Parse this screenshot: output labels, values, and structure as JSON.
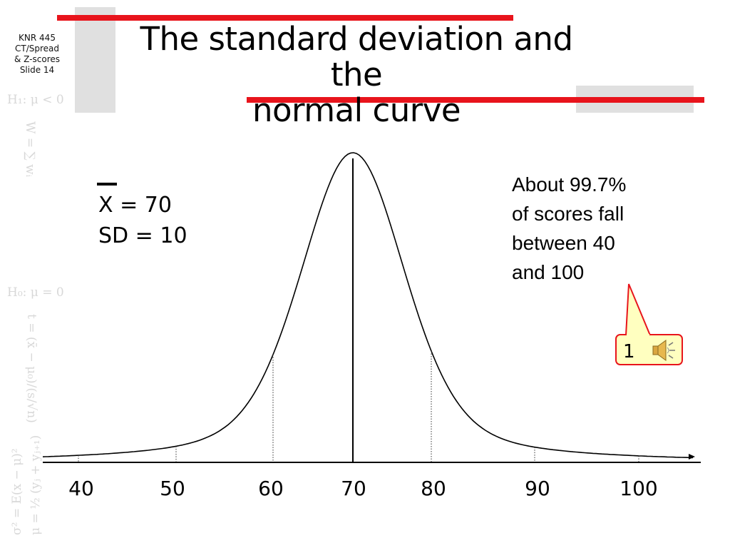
{
  "slide": {
    "side_label": [
      "KNR 445",
      "CT/Spread",
      "& Z-scores",
      "Slide 14"
    ],
    "title_lines": [
      "The standard deviation and the",
      "normal curve"
    ],
    "side_formulas": [
      "H₁: μ < 0",
      "W = ∑ wᵢ",
      "H₀: μ = 0",
      "t = (x̄ − μ₀)/(s/√n)",
      "σ² = E(x − μ)²",
      "μ = ½ (yⱼ + yⱼ₊₁)"
    ],
    "accent_color": "#e8141c",
    "band_color": "#e0e0e0"
  },
  "stats": {
    "mean_symbol": "X",
    "mean_line": " = 70",
    "sd_line": "SD = 10"
  },
  "note": {
    "lines": [
      "About 99.7%",
      "of scores fall",
      "between 40",
      "and 100"
    ]
  },
  "callout": {
    "number": "1",
    "icon": "speaker-icon",
    "fill": "#ffffc0",
    "stroke": "#e8141c"
  },
  "axis": {
    "tick_labels": [
      "40",
      "50",
      "60",
      "70",
      "80",
      "90",
      "100"
    ]
  }
}
